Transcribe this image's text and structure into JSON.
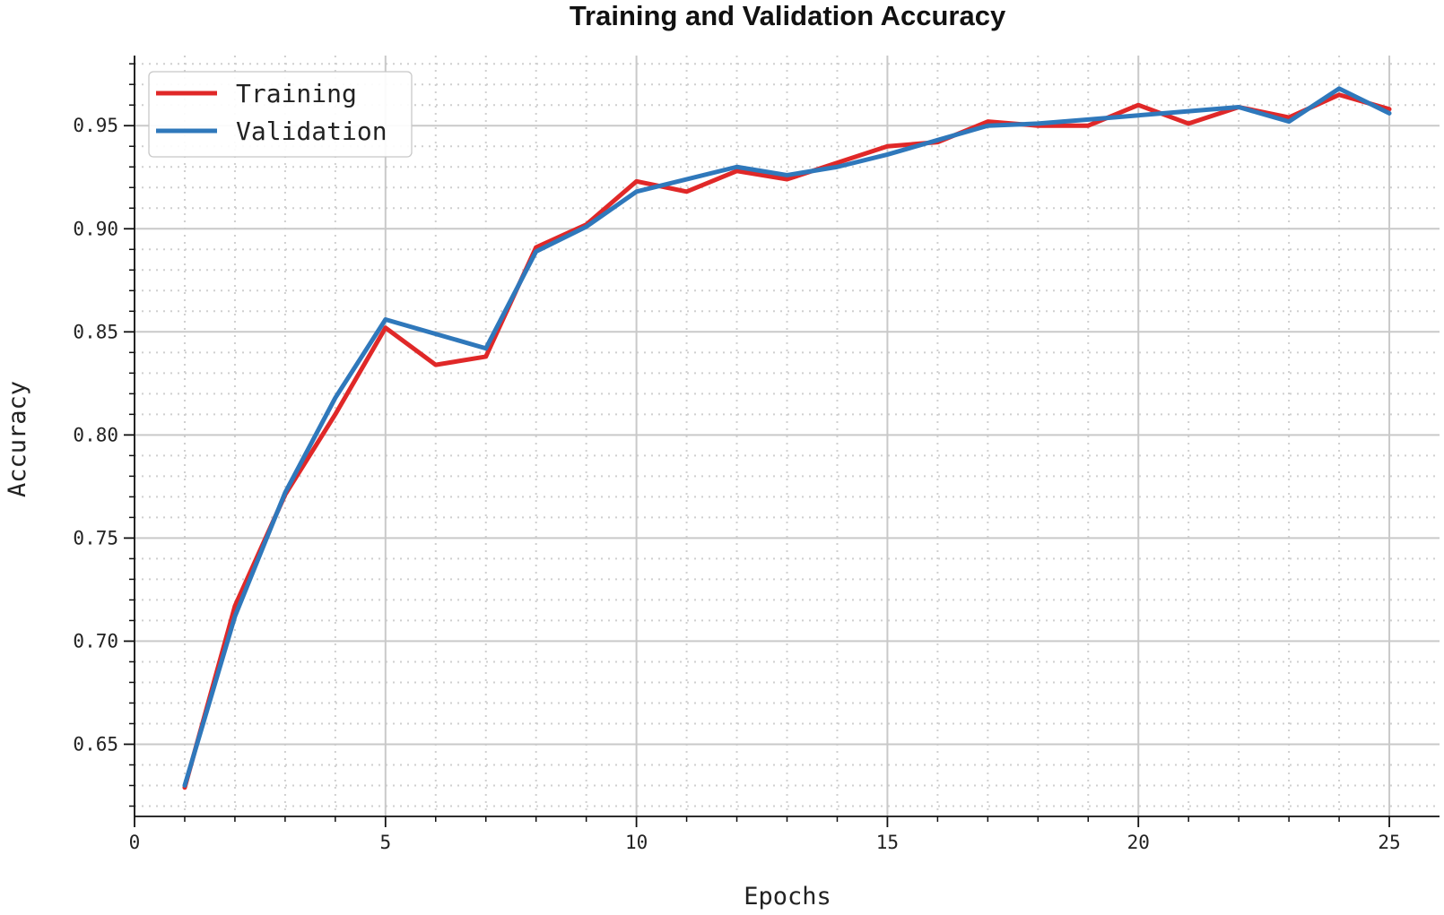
{
  "chart_data": {
    "type": "line",
    "title": "Training and Validation Accuracy",
    "xlabel": "Epochs",
    "ylabel": "Accuracy",
    "xlim": [
      0,
      26
    ],
    "ylim": [
      0.615,
      0.984
    ],
    "xticks": [
      0,
      5,
      10,
      15,
      20,
      25
    ],
    "xtick_labels": [
      "0",
      "5",
      "10",
      "15",
      "20",
      "25"
    ],
    "yticks": [
      0.65,
      0.7,
      0.75,
      0.8,
      0.85,
      0.9,
      0.95
    ],
    "ytick_labels": [
      "0.65",
      "0.70",
      "0.75",
      "0.80",
      "0.85",
      "0.90",
      "0.95"
    ],
    "grid": true,
    "legend_position": "top-left",
    "x": [
      1,
      2,
      3,
      4,
      5,
      6,
      7,
      8,
      9,
      10,
      11,
      12,
      13,
      14,
      15,
      16,
      17,
      18,
      19,
      20,
      21,
      22,
      23,
      24,
      25
    ],
    "series": [
      {
        "name": "Training",
        "color": "#e02828",
        "values": [
          0.629,
          0.717,
          0.771,
          0.81,
          0.852,
          0.834,
          0.838,
          0.891,
          0.902,
          0.923,
          0.918,
          0.928,
          0.924,
          0.932,
          0.94,
          0.942,
          0.952,
          0.95,
          0.95,
          0.96,
          0.951,
          0.959,
          0.954,
          0.965,
          0.958
        ]
      },
      {
        "name": "Validation",
        "color": "#2f78bb",
        "values": [
          0.63,
          0.712,
          0.772,
          0.818,
          0.856,
          0.849,
          0.842,
          0.889,
          0.901,
          0.918,
          0.924,
          0.93,
          0.926,
          0.93,
          0.936,
          0.943,
          0.95,
          0.951,
          0.953,
          0.955,
          0.957,
          0.959,
          0.952,
          0.968,
          0.956
        ]
      }
    ]
  }
}
